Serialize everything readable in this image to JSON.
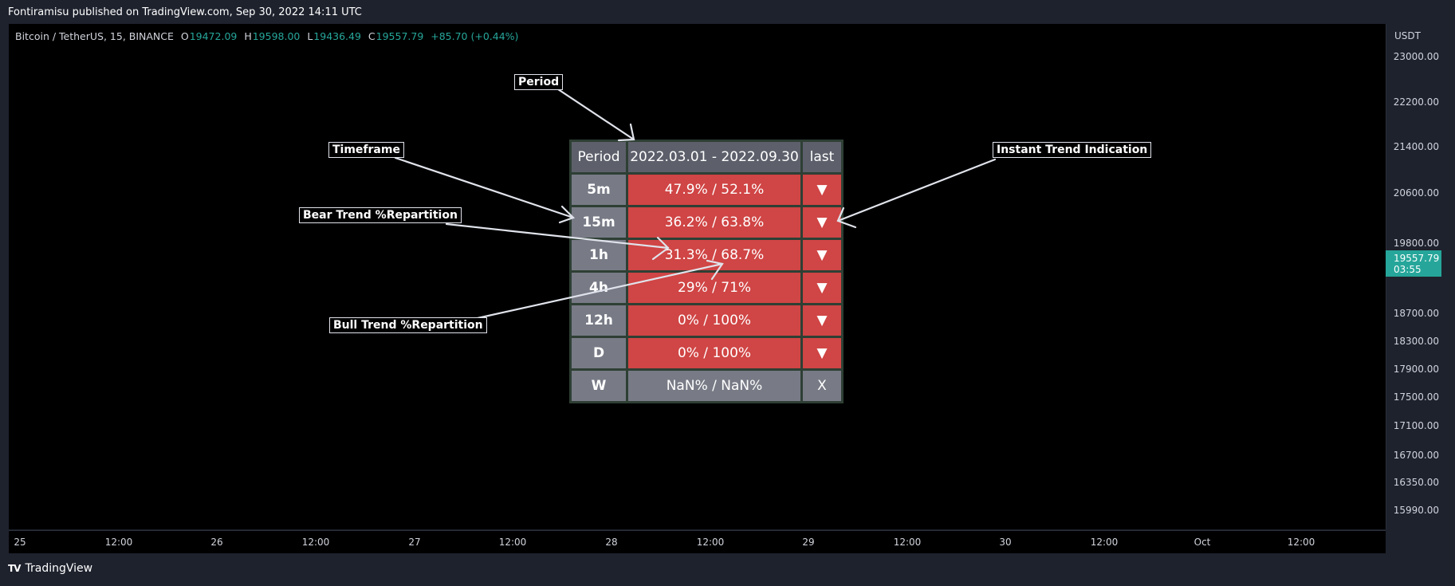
{
  "header": {
    "published": "Fontiramisu published on TradingView.com, Sep 30, 2022 14:11 UTC"
  },
  "symbol": {
    "name": "Bitcoin / TetherUS, 15, BINANCE",
    "open_label": "O",
    "open": "19472.09",
    "high_label": "H",
    "high": "19598.00",
    "low_label": "L",
    "low": "19436.49",
    "close_label": "C",
    "close": "19557.79",
    "change": "+85.70 (+0.44%)"
  },
  "price_axis": {
    "unit": "USDT",
    "ticks": [
      "23000.00",
      "22200.00",
      "21400.00",
      "20600.00",
      "19800.00",
      "18700.00",
      "18300.00",
      "17900.00",
      "17500.00",
      "17100.00",
      "16700.00",
      "16350.00",
      "15990.00"
    ],
    "current_price": "19557.79",
    "countdown": "03:55"
  },
  "time_axis": {
    "ticks": [
      "25",
      "12:00",
      "26",
      "12:00",
      "27",
      "12:00",
      "28",
      "12:00",
      "29",
      "12:00",
      "30",
      "12:00",
      "Oct",
      "12:00"
    ]
  },
  "table": {
    "header": {
      "tf": "Period",
      "range": "2022.03.01 -  2022.09.30",
      "last": "last"
    },
    "rows": [
      {
        "tf": "5m",
        "range": "47.9% / 52.1%",
        "last": "▼",
        "status": "bear"
      },
      {
        "tf": "15m",
        "range": "36.2% / 63.8%",
        "last": "▼",
        "status": "bear"
      },
      {
        "tf": "1h",
        "range": "31.3% / 68.7%",
        "last": "▼",
        "status": "bear"
      },
      {
        "tf": "4h",
        "range": "29% / 71%",
        "last": "▼",
        "status": "bear"
      },
      {
        "tf": "12h",
        "range": "0% / 100%",
        "last": "▼",
        "status": "bear"
      },
      {
        "tf": "D",
        "range": "0% / 100%",
        "last": "▼",
        "status": "bear"
      },
      {
        "tf": "W",
        "range": "NaN% / NaN%",
        "last": "X",
        "status": "na"
      }
    ]
  },
  "annotations": {
    "period": "Period",
    "timeframe": "Timeframe",
    "bear": "Bear Trend %Repartition",
    "bull": "Bull Trend %Repartition",
    "instant": "Instant Trend Indication"
  },
  "footer": {
    "brand": "TradingView"
  },
  "colors": {
    "bear": "#d04545",
    "neutral": "#787b86",
    "accent": "#26a69a"
  }
}
